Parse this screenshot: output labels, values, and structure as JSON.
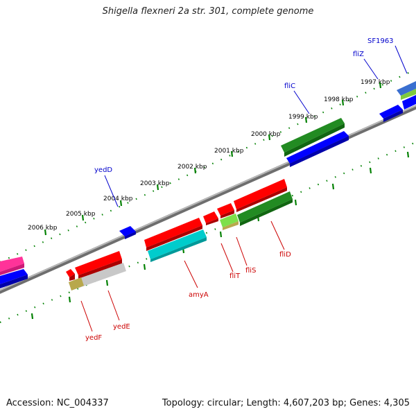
{
  "title": "Shigella flexneri 2a str. 301, complete genome",
  "footer": {
    "accession_label": "Accession:",
    "accession": "NC_004337",
    "topology": "Topology: circular; Length: 4,607,203 bp; Genes: 4,305"
  },
  "colors": {
    "forward_label": "#0000cc",
    "reverse_label": "#cc0000",
    "backbone": "#808080",
    "tick_marks": "#008000"
  },
  "kbp_ticks": [
    "1997 kbp",
    "1998 kbp",
    "1999 kbp",
    "2000 kbp",
    "2001 kbp",
    "2002 kbp",
    "2003 kbp",
    "2004 kbp",
    "2005 kbp",
    "2006 kbp"
  ],
  "gene_labels": {
    "forward": [
      "SF1963",
      "fliZ",
      "fliC",
      "yedD"
    ],
    "reverse": [
      "fliD",
      "fliS",
      "fliT",
      "amyA",
      "yedE",
      "yedF"
    ]
  }
}
